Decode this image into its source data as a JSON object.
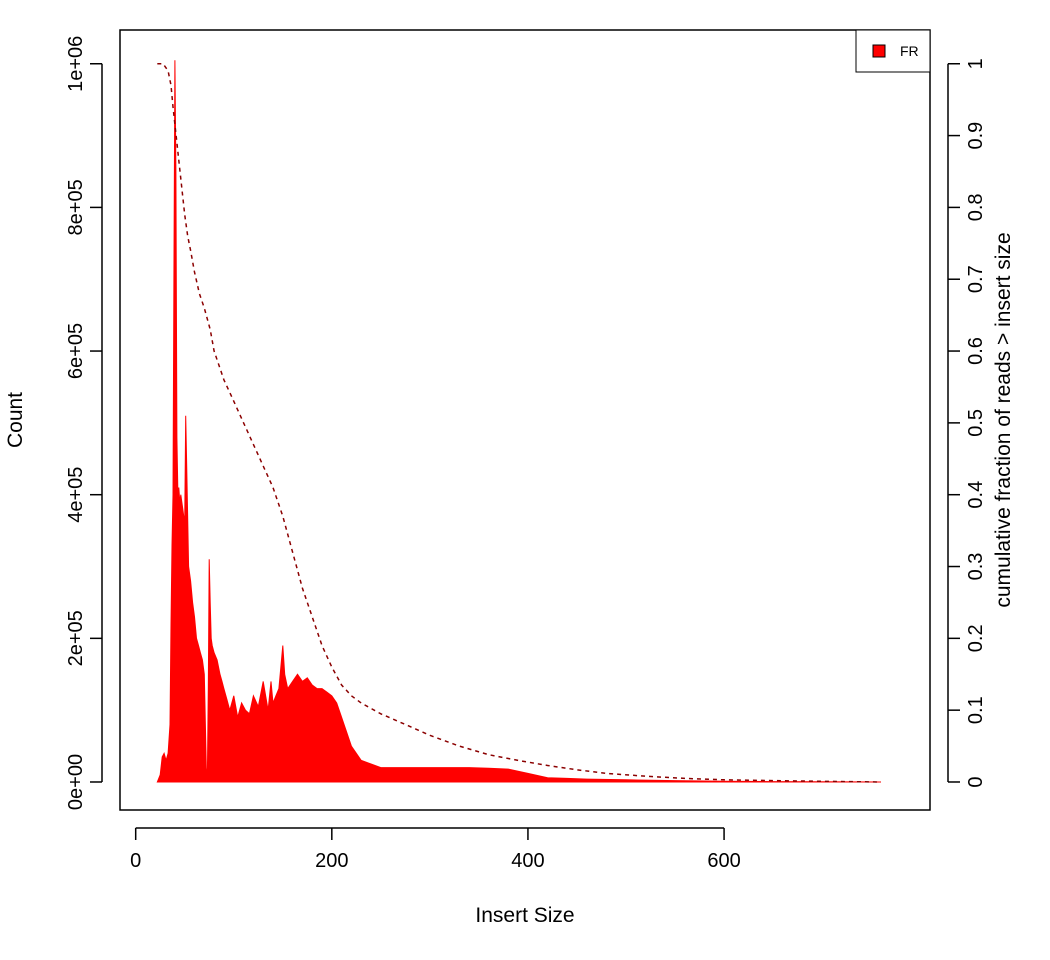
{
  "chart_data": {
    "type": "histogram",
    "title": "",
    "xlabel": "Insert Size",
    "ylabel": "Count",
    "y2label": "cumulative fraction of reads > insert size",
    "xlim": [
      -16,
      810
    ],
    "ylim": [
      -39000,
      1047000
    ],
    "y2lim": [
      -0.039,
      1.047
    ],
    "xticks": [
      0,
      200,
      400,
      600
    ],
    "xtick_labels": [
      "0",
      "200",
      "400",
      "600"
    ],
    "yticks": [
      0,
      200000,
      400000,
      600000,
      800000,
      1000000
    ],
    "ytick_labels": [
      "0e+00",
      "2e+05",
      "4e+05",
      "6e+05",
      "8e+05",
      "1e+06"
    ],
    "y2ticks": [
      0,
      0.1,
      0.2,
      0.3,
      0.4,
      0.5,
      0.6,
      0.7,
      0.8,
      0.9,
      1
    ],
    "y2tick_labels": [
      "0",
      "0.1",
      "0.2",
      "0.3",
      "0.4",
      "0.5",
      "0.6",
      "0.7",
      "0.8",
      "0.9",
      "1"
    ],
    "grid": false,
    "legend": {
      "position": "top-right",
      "entries": [
        {
          "name": "FR",
          "color": "#ff0000"
        }
      ]
    },
    "series": [
      {
        "name": "FR",
        "kind": "histogram",
        "color": "#ff0000",
        "x": [
          22,
          25,
          27,
          29,
          31,
          33,
          35,
          36,
          37,
          38,
          39,
          40,
          41,
          42,
          43,
          44,
          45,
          46,
          48,
          50,
          51,
          52,
          54,
          56,
          58,
          60,
          62,
          64,
          66,
          68,
          70,
          72,
          73,
          74,
          75,
          76,
          77,
          78,
          80,
          83,
          86,
          88,
          90,
          93,
          96,
          100,
          104,
          108,
          112,
          116,
          120,
          125,
          130,
          135,
          138,
          140,
          143,
          146,
          150,
          152,
          155,
          160,
          165,
          170,
          175,
          180,
          185,
          190,
          195,
          200,
          205,
          210,
          215,
          220,
          225,
          230,
          240,
          250,
          260,
          270,
          280,
          300,
          320,
          340,
          360,
          380,
          400,
          420,
          440,
          460,
          500,
          550,
          600,
          650,
          700,
          760
        ],
        "values": [
          0,
          10000,
          35000,
          40000,
          30000,
          40000,
          80000,
          220000,
          330000,
          400000,
          700000,
          1005000,
          850000,
          480000,
          400000,
          410000,
          390000,
          400000,
          380000,
          360000,
          510000,
          440000,
          300000,
          280000,
          250000,
          230000,
          200000,
          190000,
          180000,
          170000,
          150000,
          20000,
          0,
          130000,
          310000,
          250000,
          200000,
          190000,
          180000,
          170000,
          150000,
          140000,
          130000,
          115000,
          100000,
          120000,
          90000,
          110000,
          100000,
          95000,
          120000,
          105000,
          140000,
          100000,
          140000,
          110000,
          120000,
          130000,
          190000,
          150000,
          130000,
          140000,
          150000,
          140000,
          145000,
          135000,
          130000,
          130000,
          125000,
          120000,
          110000,
          90000,
          70000,
          50000,
          40000,
          30000,
          25000,
          20000,
          20000,
          20000,
          20000,
          20000,
          20000,
          20000,
          19000,
          18000,
          12000,
          6000,
          5000,
          4000,
          3000,
          2000,
          1000,
          500,
          200,
          0
        ]
      },
      {
        "name": "cumulative fraction of reads > insert size",
        "kind": "line",
        "axis": "right",
        "style": "dashed",
        "color": "#8b0000",
        "x": [
          22,
          28,
          33,
          36,
          38,
          42,
          46,
          50,
          53,
          56,
          60,
          65,
          70,
          76,
          80,
          90,
          100,
          110,
          120,
          130,
          140,
          145,
          150,
          160,
          170,
          180,
          190,
          200,
          210,
          220,
          230,
          250,
          275,
          300,
          330,
          360,
          390,
          420,
          450,
          480,
          520,
          560,
          600,
          650,
          700,
          760
        ],
        "values": [
          1.0,
          1.0,
          0.99,
          0.97,
          0.94,
          0.89,
          0.84,
          0.79,
          0.76,
          0.74,
          0.71,
          0.68,
          0.66,
          0.63,
          0.6,
          0.56,
          0.53,
          0.5,
          0.47,
          0.44,
          0.41,
          0.39,
          0.37,
          0.32,
          0.27,
          0.23,
          0.19,
          0.16,
          0.135,
          0.12,
          0.11,
          0.095,
          0.08,
          0.065,
          0.05,
          0.038,
          0.03,
          0.023,
          0.017,
          0.012,
          0.008,
          0.005,
          0.003,
          0.002,
          0.001,
          0.0
        ]
      }
    ]
  }
}
